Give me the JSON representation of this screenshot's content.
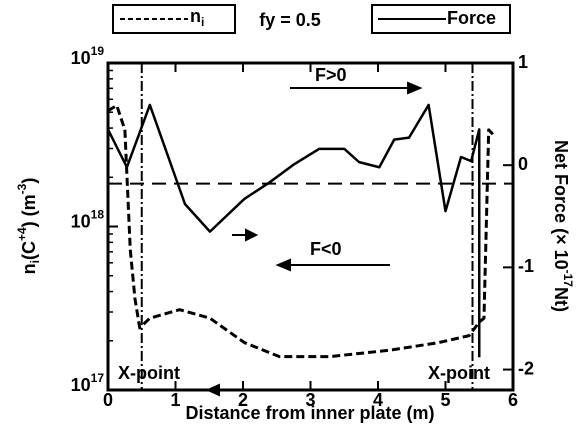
{
  "chart_data": {
    "type": "line",
    "annotation_fy": "fy = 0.5",
    "xlabel": "Distance from inner plate (m)",
    "ylabel": "n_{i}(C^{+4}) (m^{-3})",
    "y2label": "Net Force (× 10^{-17}Nt)",
    "xlim": [
      0,
      6
    ],
    "xticks": [
      0,
      1,
      2,
      3,
      4,
      5,
      6
    ],
    "ylim": [
      1e+17,
      1e+19
    ],
    "yscale": "log",
    "yticks": [
      {
        "value": 1e+17,
        "label": "10^{17}"
      },
      {
        "value": 1e+18,
        "label": "10^{18}"
      },
      {
        "value": 1e+19,
        "label": "10^{19}"
      }
    ],
    "y2lim": [
      -2.2,
      1
    ],
    "y2ticks": [
      -2,
      -1,
      0,
      1
    ],
    "reference_line": {
      "value": -0.18,
      "axis": "y2"
    },
    "xpoint_lines": [
      0.5,
      5.4
    ],
    "annotations": [
      "F>0",
      "F<0",
      "X-point",
      "X-point"
    ],
    "series": [
      {
        "name": "n_{i}",
        "color": "#000000",
        "dash": "dashed",
        "x": [
          0,
          0.13,
          0.25,
          0.33,
          0.4,
          0.47,
          0.62,
          1.06,
          1.51,
          2.02,
          2.54,
          3.28,
          4.17,
          4.9,
          5.35,
          5.5,
          5.57,
          5.64,
          5.72
        ],
        "values": [
          5.1e+18,
          5.5e+18,
          3.9e+18,
          7.2e+17,
          3.6e+17,
          2.4e+17,
          2.75e+17,
          3.1e+17,
          2.75e+17,
          1.95e+17,
          1.6e+17,
          1.6e+17,
          1.75e+17,
          1.95e+17,
          2.15e+17,
          2.6e+17,
          2.75e+17,
          3.9e+18,
          3.6e+18
        ]
      },
      {
        "name": "Force",
        "color": "#000000",
        "dash": "solid",
        "axis": "y2",
        "x": [
          0,
          0.28,
          0.62,
          1.14,
          1.51,
          2.02,
          2.39,
          2.76,
          3.13,
          3.5,
          3.72,
          4.02,
          4.24,
          4.46,
          4.75,
          5.0,
          5.23,
          5.38,
          5.5,
          5.5
        ],
        "values": [
          0.35,
          -0.02,
          0.59,
          -0.38,
          -0.65,
          -0.33,
          -0.17,
          0.01,
          0.16,
          0.16,
          0.03,
          -0.02,
          0.25,
          0.27,
          0.59,
          -0.45,
          0.08,
          0.04,
          0.35,
          -1.88
        ]
      }
    ]
  }
}
